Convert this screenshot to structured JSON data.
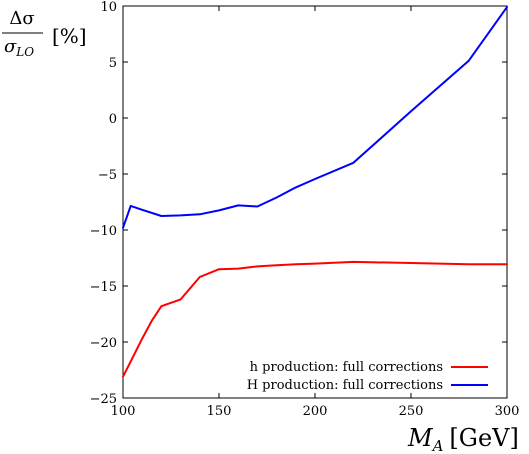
{
  "chart_data": {
    "type": "line",
    "xlabel": {
      "symbol": "M",
      "subscript": "A",
      "unit": "[GeV]"
    },
    "ylabel": {
      "numerator": "Δσ",
      "denominator_symbol": "σ",
      "denominator_subscript": "LO",
      "unit": "[%]"
    },
    "xlim": [
      100,
      300
    ],
    "ylim": [
      -25,
      10
    ],
    "x_ticks": [
      100,
      150,
      200,
      250,
      300
    ],
    "y_ticks": [
      -25,
      -20,
      -15,
      -10,
      -5,
      0,
      5,
      10
    ],
    "x_tick_labels": [
      "100",
      "150",
      "200",
      "250",
      "300"
    ],
    "y_tick_labels": [
      "−25",
      "−20",
      "−15",
      "−10",
      "−5",
      "0",
      "5",
      "10"
    ],
    "grid": false,
    "legend_position": "bottom-right",
    "series": [
      {
        "name": "h production: full corrections",
        "color": "#ff0000",
        "x": [
          100,
          105,
          110,
          115,
          120,
          130,
          140,
          150,
          160,
          170,
          180,
          190,
          200,
          220,
          250,
          280,
          300
        ],
        "y": [
          -23.1,
          -21.4,
          -19.7,
          -18.1,
          -16.8,
          -16.2,
          -14.2,
          -13.5,
          -13.45,
          -13.25,
          -13.15,
          -13.05,
          -13.0,
          -12.85,
          -12.95,
          -13.05,
          -13.05
        ]
      },
      {
        "name": "H production: full corrections",
        "color": "#0000ff",
        "x": [
          100,
          104,
          110,
          120,
          130,
          140,
          150,
          160,
          170,
          180,
          190,
          200,
          220,
          250,
          280,
          300
        ],
        "y": [
          -9.8,
          -7.85,
          -8.2,
          -8.75,
          -8.7,
          -8.6,
          -8.25,
          -7.8,
          -7.9,
          -7.1,
          -6.2,
          -5.45,
          -4.0,
          0.6,
          5.1,
          9.9
        ]
      }
    ]
  }
}
